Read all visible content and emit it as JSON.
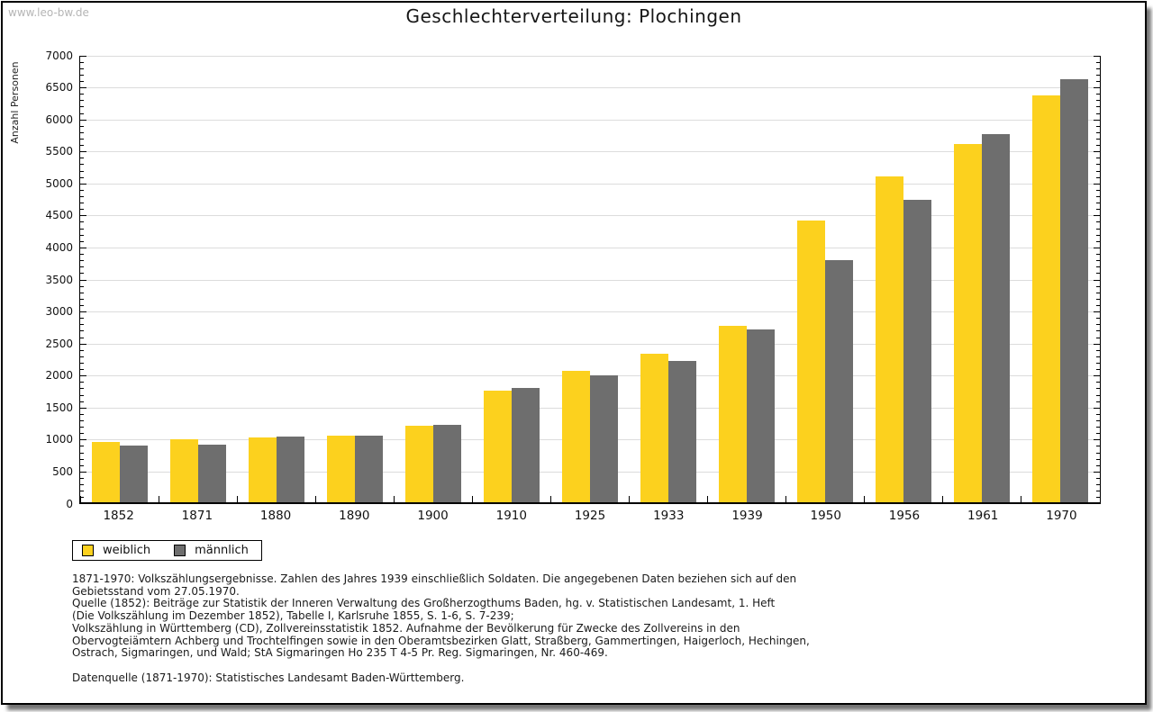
{
  "watermark": "www.leo-bw.de",
  "title": "Geschlechterverteilung: Plochingen",
  "chart_data": {
    "type": "bar",
    "title": "Geschlechterverteilung: Plochingen",
    "xlabel": "",
    "ylabel": "Anzahl Personen",
    "ylim": [
      0,
      7000
    ],
    "ytick_step": 500,
    "minor_tick_step": 100,
    "grid": true,
    "legend_position": "bottom-left",
    "categories": [
      "1852",
      "1871",
      "1880",
      "1890",
      "1900",
      "1910",
      "1925",
      "1933",
      "1939",
      "1950",
      "1956",
      "1961",
      "1970"
    ],
    "series": [
      {
        "name": "weiblich",
        "color": "#FCD11E",
        "values": [
          940,
          985,
          1010,
          1040,
          1195,
          1750,
          2050,
          2320,
          2760,
          4400,
          5090,
          5600,
          6350
        ]
      },
      {
        "name": "männlich",
        "color": "#6E6E6E",
        "values": [
          885,
          900,
          1025,
          1035,
          1215,
          1780,
          1980,
          2210,
          2700,
          3780,
          4730,
          5750,
          6610
        ]
      }
    ]
  },
  "colors": {
    "grid": "#dcdcdc",
    "axis": "#000000",
    "weiblich": "#FCD11E",
    "maennlich": "#6E6E6E",
    "watermark": "#b5b5b5"
  },
  "footnotes": {
    "lines": [
      "1871-1970: Volkszählungsergebnisse. Zahlen des Jahres 1939 einschließlich Soldaten. Die angegebenen Daten beziehen sich auf den",
      "Gebietsstand vom 27.05.1970.",
      "Quelle (1852): Beiträge zur Statistik der Inneren Verwaltung des Großherzogthums Baden, hg. v. Statistischen Landesamt, 1. Heft",
      "(Die Volkszählung im Dezember 1852), Tabelle I, Karlsruhe 1855, S. 1-6, S. 7-239;",
      "Volkszählung in Württemberg (CD), Zollvereinsstatistik 1852. Aufnahme der Bevölkerung für Zwecke des Zollvereins in den",
      "Obervogteiämtern Achberg und Trochtelfingen sowie in den Oberamtsbezirken Glatt, Straßberg, Gammertingen, Haigerloch, Hechingen,",
      "Ostrach, Sigmaringen, und Wald; StA Sigmaringen Ho 235 T 4-5 Pr. Reg. Sigmaringen, Nr. 460-469.",
      "",
      "Datenquelle (1871-1970): Statistisches Landesamt Baden-Württemberg."
    ]
  }
}
